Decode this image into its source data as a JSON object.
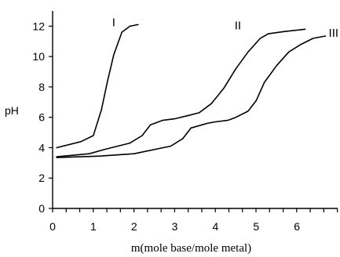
{
  "chart_data": {
    "type": "line",
    "title": "",
    "xlabel": "m(mole base/mole metal)",
    "ylabel": "pH",
    "xlim": [
      0,
      7
    ],
    "ylim": [
      0,
      13
    ],
    "x_ticks": [
      "0",
      "1",
      "2",
      "3",
      "4",
      "5",
      "6"
    ],
    "y_ticks": [
      "0",
      "2",
      "4",
      "6",
      "8",
      "10",
      "12"
    ],
    "x_minor_step": 0.333,
    "grid": false,
    "legend": "none",
    "series": [
      {
        "name": "I",
        "points": [
          [
            0.1,
            4.0
          ],
          [
            0.7,
            4.4
          ],
          [
            1.0,
            4.8
          ],
          [
            1.2,
            6.5
          ],
          [
            1.35,
            8.4
          ],
          [
            1.5,
            10.1
          ],
          [
            1.7,
            11.6
          ],
          [
            1.9,
            12.0
          ],
          [
            2.1,
            12.1
          ]
        ]
      },
      {
        "name": "II",
        "points": [
          [
            0.1,
            3.4
          ],
          [
            0.9,
            3.6
          ],
          [
            1.3,
            3.9
          ],
          [
            1.9,
            4.3
          ],
          [
            2.2,
            4.8
          ],
          [
            2.4,
            5.5
          ],
          [
            2.7,
            5.8
          ],
          [
            3.0,
            5.9
          ],
          [
            3.3,
            6.1
          ],
          [
            3.6,
            6.3
          ],
          [
            3.9,
            6.9
          ],
          [
            4.2,
            7.9
          ],
          [
            4.5,
            9.2
          ],
          [
            4.8,
            10.3
          ],
          [
            5.1,
            11.2
          ],
          [
            5.3,
            11.5
          ],
          [
            5.7,
            11.65
          ],
          [
            6.2,
            11.8
          ]
        ]
      },
      {
        "name": "III",
        "points": [
          [
            0.1,
            3.35
          ],
          [
            1.2,
            3.45
          ],
          [
            2.0,
            3.6
          ],
          [
            2.9,
            4.1
          ],
          [
            3.2,
            4.6
          ],
          [
            3.4,
            5.3
          ],
          [
            3.8,
            5.6
          ],
          [
            4.0,
            5.7
          ],
          [
            4.3,
            5.8
          ],
          [
            4.5,
            6.0
          ],
          [
            4.8,
            6.4
          ],
          [
            5.0,
            7.1
          ],
          [
            5.2,
            8.3
          ],
          [
            5.5,
            9.4
          ],
          [
            5.8,
            10.3
          ],
          [
            6.1,
            10.8
          ],
          [
            6.4,
            11.2
          ],
          [
            6.7,
            11.35
          ]
        ]
      }
    ],
    "series_label_anchors": [
      [
        1.5,
        12.0
      ],
      [
        4.55,
        11.8
      ],
      [
        6.9,
        11.3
      ]
    ]
  }
}
